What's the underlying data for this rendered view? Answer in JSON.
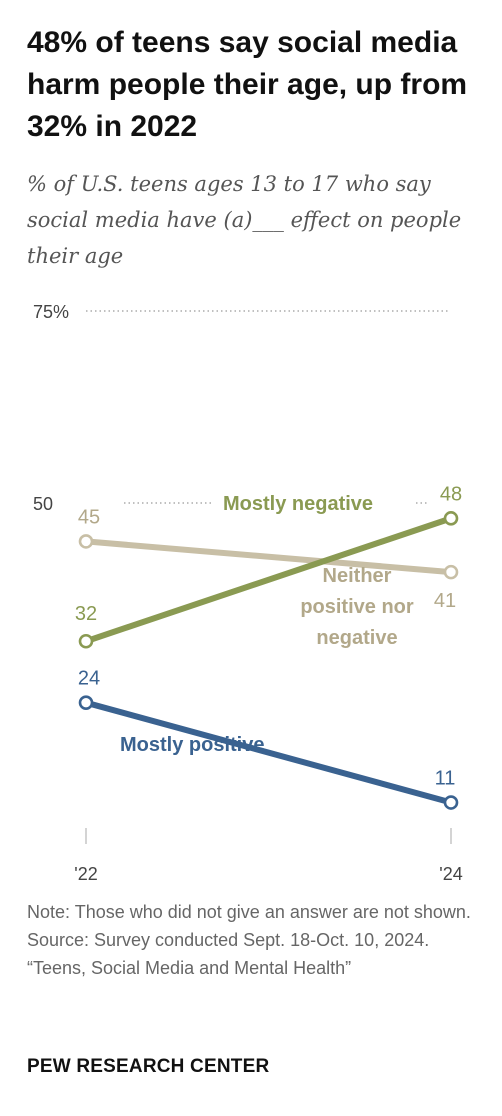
{
  "header": {
    "title": "48% of teens say social media harm people their age, up from 32% in 2022",
    "subtitle": "% of U.S. teens ages 13 to 17 who say social media have (a)___ effect on people their age"
  },
  "chart_data": {
    "type": "line",
    "x": [
      "'22",
      "'24"
    ],
    "yticks": [
      "75%",
      "50"
    ],
    "ylim": [
      0,
      75
    ],
    "grid": "dotted gridlines at 75 and 50",
    "series": [
      {
        "name": "Mostly negative",
        "values": [
          32,
          48
        ],
        "color": "#8a9a52"
      },
      {
        "name": "Neither positive nor negative",
        "values": [
          45,
          41
        ],
        "color": "#c8bfa6",
        "label_color": "#b2a88a"
      },
      {
        "name": "Mostly positive",
        "values": [
          24,
          11
        ],
        "color": "#3a6290"
      }
    ]
  },
  "footer": {
    "note": "Note: Those who did not give an answer are not shown.",
    "source": "Source: Survey conducted Sept. 18-Oct. 10, 2024.",
    "report": "“Teens, Social Media and Mental Health”",
    "org": "PEW RESEARCH CENTER"
  },
  "colors": {
    "background": "#ffffff",
    "title": "#111111",
    "subtitle": "#555555",
    "footer": "#666666"
  }
}
